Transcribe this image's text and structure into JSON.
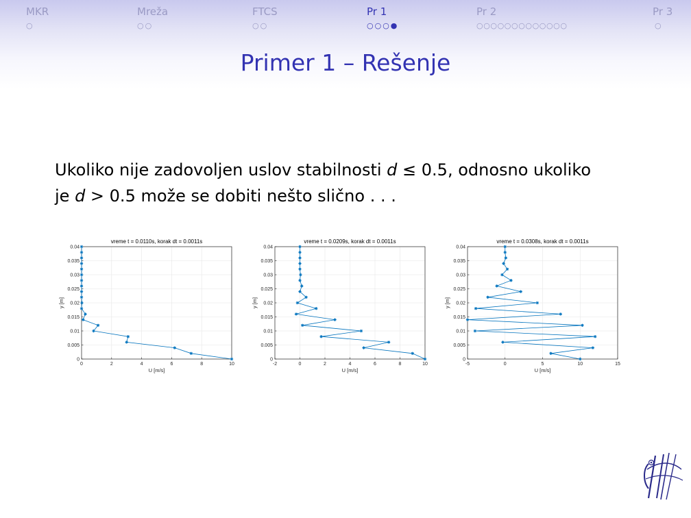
{
  "nav": {
    "items": [
      {
        "label": "MKR",
        "dots": "○",
        "active": false
      },
      {
        "label": "Mreža",
        "dots": "○○",
        "active": false
      },
      {
        "label": "FTCS",
        "dots": "○○",
        "active": false
      },
      {
        "label": "Pr 1",
        "dots": "○○○●",
        "active": true
      },
      {
        "label": "Pr 2",
        "dots": "○○○○○○○○○○○○○",
        "active": false
      },
      {
        "label": "Pr 3",
        "dots": "○",
        "active": false
      }
    ]
  },
  "frame_title": "Primer 1 – Rešenje",
  "body": {
    "line1_a": "Ukoliko nije zadovoljen uslov stabilnosti ",
    "line1_var": "d",
    "line1_b": " ≤ 0.5, odnosno ukoliko",
    "line2_a": "je ",
    "line2_var": "d",
    "line2_b": " > 0.5 može se dobiti nešto slično . . ."
  },
  "colors": {
    "accent": "#3333b2",
    "nav_inactive": "#9a9ac4",
    "series": "#0072bd"
  },
  "chart_data": [
    {
      "type": "line",
      "title": "vreme t = 0.0110s, korak dt = 0.0011s",
      "xlabel": "U [m/s]",
      "ylabel": "y [m]",
      "xlim": [
        0,
        10
      ],
      "ylim": [
        0,
        0.04
      ],
      "xticks": [
        0,
        2,
        4,
        6,
        8,
        10
      ],
      "xtick_labels": [
        "0",
        "2",
        "4",
        "6",
        "8",
        "10"
      ],
      "yticks": [
        0,
        0.005,
        0.01,
        0.015,
        0.02,
        0.025,
        0.03,
        0.035,
        0.04
      ],
      "ytick_labels": [
        "0",
        "0.005",
        "0.01",
        "0.015",
        "0.02",
        "0.025",
        "0.03",
        "0.035",
        "0.04"
      ],
      "grid": true,
      "y": [
        0,
        0.002,
        0.004,
        0.006,
        0.008,
        0.01,
        0.012,
        0.014,
        0.016,
        0.018,
        0.02,
        0.022,
        0.024,
        0.026,
        0.028,
        0.03,
        0.032,
        0.034,
        0.036,
        0.038,
        0.04
      ],
      "x": [
        10,
        7.3,
        6.2,
        3.0,
        3.1,
        0.8,
        1.1,
        0.1,
        0.25,
        0.0,
        0.02,
        0.0,
        0.0,
        0.0,
        0.0,
        0.0,
        0.0,
        0.0,
        0.0,
        0.0,
        0.0
      ]
    },
    {
      "type": "line",
      "title": "vreme t = 0.0209s, korak dt = 0.0011s",
      "xlabel": "U [m/s]",
      "ylabel": "y [m]",
      "xlim": [
        -2,
        10
      ],
      "ylim": [
        0,
        0.04
      ],
      "xticks": [
        -2,
        0,
        2,
        4,
        6,
        8,
        10
      ],
      "xtick_labels": [
        "-2",
        "0",
        "2",
        "4",
        "6",
        "8",
        "10"
      ],
      "yticks": [
        0,
        0.005,
        0.01,
        0.015,
        0.02,
        0.025,
        0.03,
        0.035,
        0.04
      ],
      "ytick_labels": [
        "0",
        "0.005",
        "0.01",
        "0.015",
        "0.02",
        "0.025",
        "0.03",
        "0.035",
        "0.04"
      ],
      "grid": true,
      "y": [
        0,
        0.002,
        0.004,
        0.006,
        0.008,
        0.01,
        0.012,
        0.014,
        0.016,
        0.018,
        0.02,
        0.022,
        0.024,
        0.026,
        0.028,
        0.03,
        0.032,
        0.034,
        0.036,
        0.038,
        0.04
      ],
      "x": [
        10,
        9.0,
        5.1,
        7.1,
        1.7,
        4.9,
        0.2,
        2.8,
        -0.3,
        1.3,
        -0.2,
        0.5,
        0.0,
        0.15,
        0.0,
        0.05,
        0.0,
        0.0,
        0.0,
        0.0,
        0.0
      ]
    },
    {
      "type": "line",
      "title": "vreme t = 0.0308s, korak dt = 0.0011s",
      "xlabel": "U [m/s]",
      "ylabel": "y [m]",
      "xlim": [
        -5,
        15
      ],
      "ylim": [
        0,
        0.04
      ],
      "xticks": [
        -5,
        0,
        5,
        10,
        15
      ],
      "xtick_labels": [
        "-5",
        "0",
        "5",
        "10",
        "15"
      ],
      "yticks": [
        0,
        0.005,
        0.01,
        0.015,
        0.02,
        0.025,
        0.03,
        0.035,
        0.04
      ],
      "ytick_labels": [
        "0",
        "0.005",
        "0.01",
        "0.015",
        "0.02",
        "0.025",
        "0.03",
        "0.035",
        "0.04"
      ],
      "grid": true,
      "y": [
        0,
        0.002,
        0.004,
        0.006,
        0.008,
        0.01,
        0.012,
        0.014,
        0.016,
        0.018,
        0.02,
        0.022,
        0.024,
        0.026,
        0.028,
        0.03,
        0.032,
        0.034,
        0.036,
        0.038,
        0.04
      ],
      "x": [
        10,
        6.1,
        11.7,
        -0.3,
        12.0,
        -4.0,
        10.3,
        -5.0,
        7.4,
        -3.9,
        4.3,
        -2.3,
        2.1,
        -1.1,
        0.8,
        -0.4,
        0.3,
        -0.2,
        0.1,
        0.0,
        0.0
      ]
    }
  ]
}
